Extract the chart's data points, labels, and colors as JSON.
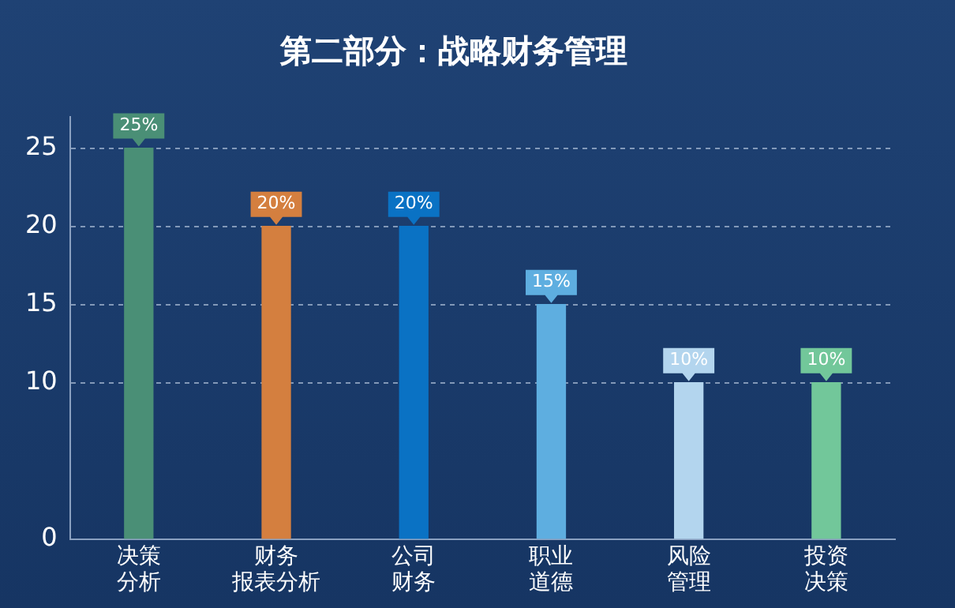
{
  "chart_data": {
    "type": "bar",
    "title": "第二部分：战略财务管理",
    "categories": [
      "决策分析",
      "财务报表分析",
      "公司财务",
      "职业道德",
      "风险管理",
      "投资决策"
    ],
    "values": [
      25,
      20,
      20,
      15,
      10,
      10
    ],
    "colors": [
      "#4a8f76",
      "#d47f3f",
      "#0a72c4",
      "#5eaee0",
      "#b3d5ee",
      "#72c79a"
    ],
    "value_labels": [
      "25%",
      "20%",
      "20%",
      "15%",
      "10%",
      "10%"
    ],
    "ylim": [
      0,
      27
    ],
    "yticks": [
      0,
      10,
      15,
      20,
      25
    ],
    "grid": "y",
    "legend": false
  }
}
